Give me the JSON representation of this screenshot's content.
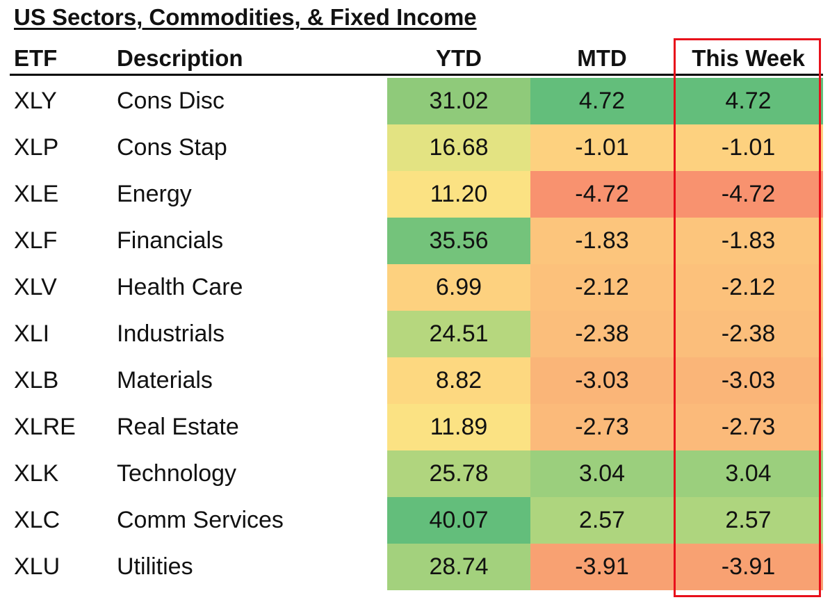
{
  "title": "US Sectors, Commodities, & Fixed Income",
  "headers": {
    "etf": "ETF",
    "description": "Description",
    "ytd": "YTD",
    "mtd": "MTD",
    "week": "This Week"
  },
  "rows": [
    {
      "etf": "XLY",
      "description": "Cons Disc",
      "ytd": "31.02",
      "mtd": "4.72",
      "week": "4.72",
      "colors": {
        "ytd": "#8fca7a",
        "mtd": "#63be7b",
        "week": "#63be7b"
      }
    },
    {
      "etf": "XLP",
      "description": "Cons Stap",
      "ytd": "16.68",
      "mtd": "-1.01",
      "week": "-1.01",
      "colors": {
        "ytd": "#e3e382",
        "mtd": "#fdd17f",
        "week": "#fdd17f"
      }
    },
    {
      "etf": "XLE",
      "description": "Energy",
      "ytd": "11.20",
      "mtd": "-4.72",
      "week": "-4.72",
      "colors": {
        "ytd": "#fbe283",
        "mtd": "#f8926f",
        "week": "#f8926f"
      }
    },
    {
      "etf": "XLF",
      "description": "Financials",
      "ytd": "35.56",
      "mtd": "-1.83",
      "week": "-1.83",
      "colors": {
        "ytd": "#74c37b",
        "mtd": "#fcc57c",
        "week": "#fcc57c"
      }
    },
    {
      "etf": "XLV",
      "description": "Health Care",
      "ytd": "6.99",
      "mtd": "-2.12",
      "week": "-2.12",
      "colors": {
        "ytd": "#fdd17f",
        "mtd": "#fcc17b",
        "week": "#fcc17b"
      }
    },
    {
      "etf": "XLI",
      "description": "Industrials",
      "ytd": "24.51",
      "mtd": "-2.38",
      "week": "-2.38",
      "colors": {
        "ytd": "#b6d77e",
        "mtd": "#fbbe7b",
        "week": "#fbbe7b"
      }
    },
    {
      "etf": "XLB",
      "description": "Materials",
      "ytd": "8.82",
      "mtd": "-3.03",
      "week": "-3.03",
      "colors": {
        "ytd": "#fdd880",
        "mtd": "#fab578",
        "week": "#fab578"
      }
    },
    {
      "etf": "XLRE",
      "description": "Real Estate",
      "ytd": "11.89",
      "mtd": "-2.73",
      "week": "-2.73",
      "colors": {
        "ytd": "#fbe283",
        "mtd": "#fbba7a",
        "week": "#fbba7a"
      }
    },
    {
      "etf": "XLK",
      "description": "Technology",
      "ytd": "25.78",
      "mtd": "3.04",
      "week": "3.04",
      "colors": {
        "ytd": "#b0d57e",
        "mtd": "#9bcf7d",
        "week": "#9bcf7d"
      }
    },
    {
      "etf": "XLC",
      "description": "Comm Services",
      "ytd": "40.07",
      "mtd": "2.57",
      "week": "2.57",
      "colors": {
        "ytd": "#63be7b",
        "mtd": "#aed57e",
        "week": "#aed57e"
      }
    },
    {
      "etf": "XLU",
      "description": "Utilities",
      "ytd": "28.74",
      "mtd": "-3.91",
      "week": "-3.91",
      "colors": {
        "ytd": "#a3d17d",
        "mtd": "#f8a172",
        "week": "#f8a172"
      }
    }
  ],
  "highlight_color": "#e8101b"
}
